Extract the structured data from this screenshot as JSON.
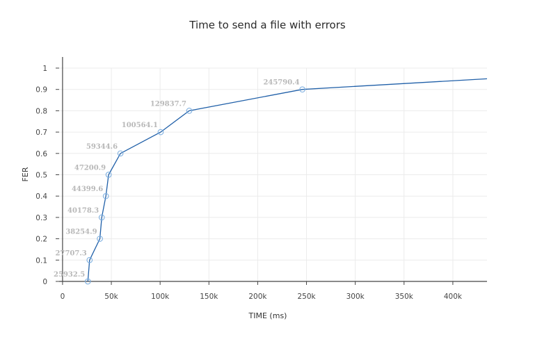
{
  "chart_data": {
    "type": "line",
    "title": "Time to send a file with errors",
    "xlabel": "TIME (ms)",
    "ylabel": "FER",
    "xlim": [
      -3500,
      435000
    ],
    "ylim": [
      0,
      1
    ],
    "x_ticks": [
      0,
      50000,
      100000,
      150000,
      200000,
      250000,
      300000,
      350000,
      400000
    ],
    "x_tick_labels": [
      "0",
      "50k",
      "100k",
      "150k",
      "200k",
      "250k",
      "300k",
      "350k",
      "400k"
    ],
    "y_ticks": [
      0,
      0.1,
      0.2,
      0.3,
      0.4,
      0.5,
      0.6,
      0.7,
      0.8,
      0.9,
      1
    ],
    "y_tick_labels": [
      "0",
      "0.1",
      "0.2",
      "0.3",
      "0.4",
      "0.5",
      "0.6",
      "0.7",
      "0.8",
      "0.9",
      "1"
    ],
    "grid": true,
    "line_color": "#1f5fa8",
    "marker_color": "#7fb0e0",
    "series": [
      {
        "x": [
          25932.5,
          27707.3,
          38254.9,
          40178.3,
          44399.6,
          47200.9,
          59344.6,
          100564.1,
          129837.7,
          245790.4,
          435000
        ],
        "y": [
          0,
          0.1,
          0.2,
          0.3,
          0.4,
          0.5,
          0.6,
          0.7,
          0.8,
          0.9,
          0.95
        ],
        "markers": [
          true,
          true,
          true,
          true,
          true,
          true,
          true,
          true,
          true,
          true,
          false
        ],
        "labels": [
          "25932.5",
          "27707.3",
          "38254.9",
          "40178.3",
          "44399.6",
          "47200.9",
          "59344.6",
          "100564.1",
          "129837.7",
          "245790.4",
          ""
        ]
      }
    ]
  }
}
